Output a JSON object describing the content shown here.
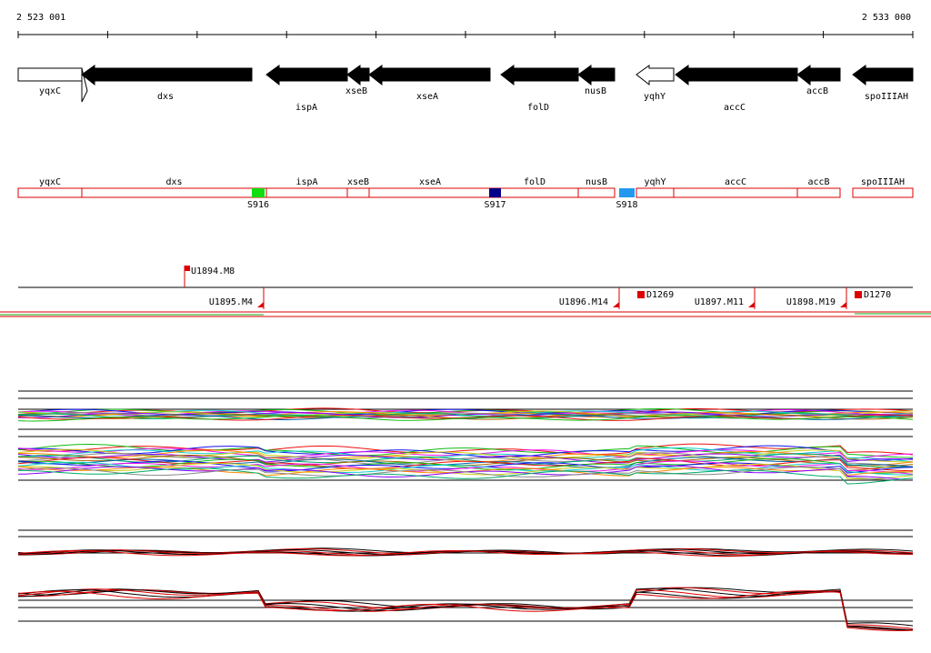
{
  "ruler": {
    "start": "2 523 001",
    "end": "2 533 000"
  },
  "genes": [
    "yqxC",
    "dxs",
    "ispA",
    "xseB",
    "xseA",
    "folD",
    "nusB",
    "yqhY",
    "accC",
    "accB",
    "spoIIIAH"
  ],
  "segments": [
    "yqxC",
    "dxs",
    "ispA",
    "xseB",
    "xseA",
    "folD",
    "nusB",
    "yqhY",
    "accC",
    "accB",
    "spoIIIAH"
  ],
  "probes": [
    "S916",
    "S917",
    "S918"
  ],
  "markers": {
    "upper": [
      "U1894.M8"
    ],
    "lower": [
      "U1895.M4",
      "U1896.M14",
      "U1897.M11",
      "U1898.M19"
    ],
    "deletions": [
      "D1269",
      "D1270"
    ]
  }
}
